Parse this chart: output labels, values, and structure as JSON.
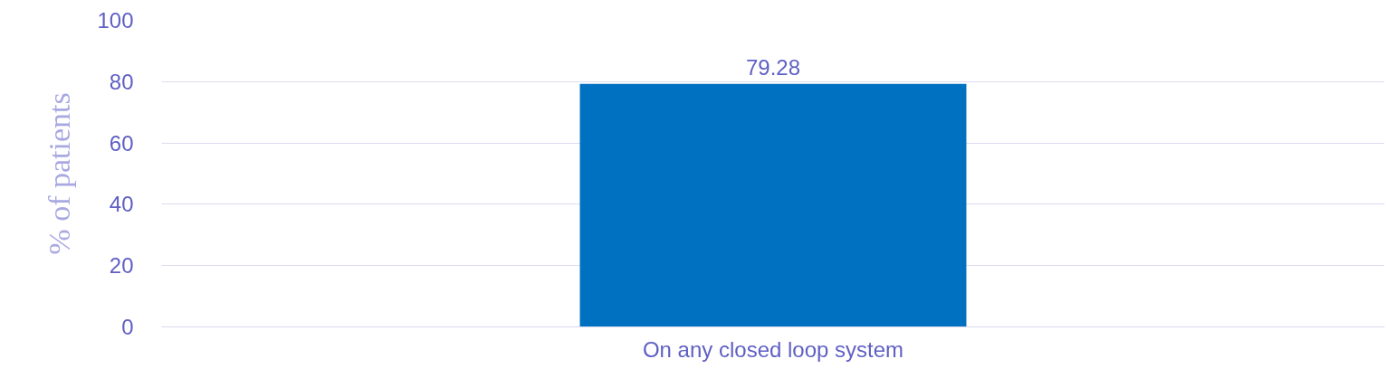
{
  "chart_data": {
    "type": "bar",
    "ylabel": "% of patients",
    "categories": [
      "On any closed loop system"
    ],
    "values": [
      79.28
    ],
    "color": "#0070c0",
    "data_labels": true,
    "ylim": [
      0,
      100
    ],
    "yticks": [
      0,
      20,
      40,
      60,
      80,
      100
    ],
    "grid": "y"
  }
}
